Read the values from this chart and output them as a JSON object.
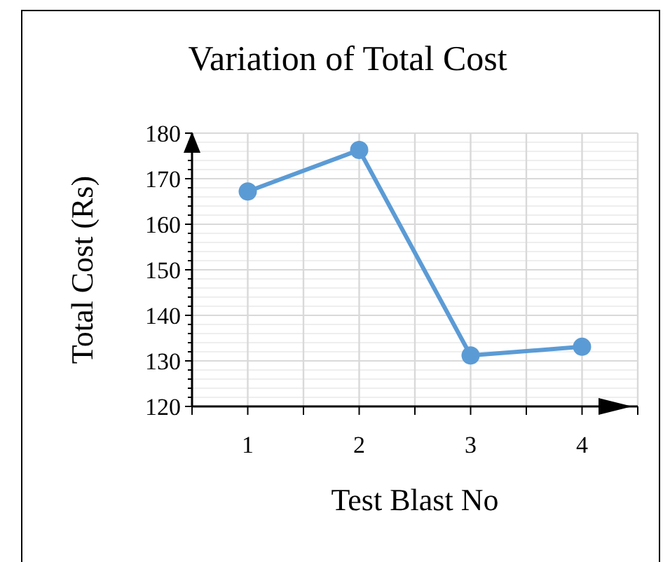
{
  "chart_data": {
    "type": "line",
    "title": "Variation of Total Cost",
    "xlabel": "Test Blast No",
    "ylabel": "Total Cost (Rs)",
    "x": [
      1,
      2,
      3,
      4
    ],
    "series": [
      {
        "color": "#5b9bd5",
        "values": [
          167.2,
          176.3,
          131.2,
          133.1
        ]
      }
    ],
    "xlim": [
      0.5,
      4.5
    ],
    "xticks": [
      {
        "value": 0.5,
        "label": null
      },
      1,
      {
        "value": 1.5,
        "label": null
      },
      2,
      {
        "value": 2.5,
        "label": null
      },
      3,
      {
        "value": 3.5,
        "label": null
      },
      4,
      {
        "value": 4.5,
        "label": null
      }
    ],
    "ylim": [
      120,
      180
    ],
    "yticks": [
      120,
      {
        "value": 122,
        "label": null
      },
      {
        "value": 124,
        "label": null
      },
      {
        "value": 126,
        "label": null
      },
      {
        "value": 128,
        "label": null
      },
      130,
      {
        "value": 132,
        "label": null
      },
      {
        "value": 134,
        "label": null
      },
      {
        "value": 136,
        "label": null
      },
      {
        "value": 138,
        "label": null
      },
      140,
      {
        "value": 142,
        "label": null
      },
      {
        "value": 144,
        "label": null
      },
      {
        "value": 146,
        "label": null
      },
      {
        "value": 148,
        "label": null
      },
      150,
      {
        "value": 152,
        "label": null
      },
      {
        "value": 154,
        "label": null
      },
      {
        "value": 156,
        "label": null
      },
      {
        "value": 158,
        "label": null
      },
      160,
      {
        "value": 162,
        "label": null
      },
      {
        "value": 164,
        "label": null
      },
      {
        "value": 166,
        "label": null
      },
      {
        "value": 168,
        "label": null
      },
      170,
      {
        "value": 172,
        "label": null
      },
      {
        "value": 174,
        "label": null
      },
      {
        "value": 176,
        "label": null
      },
      {
        "value": 178,
        "label": null
      },
      180
    ],
    "grid": true,
    "marker": "circle",
    "line_style": "solid"
  }
}
